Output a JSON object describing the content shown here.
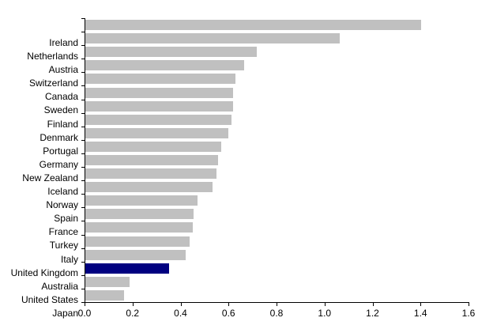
{
  "chart_data": {
    "type": "bar",
    "orientation": "horizontal",
    "categories": [
      "Ireland",
      "Netherlands",
      "Austria",
      "Switzerland",
      "Canada",
      "Sweden",
      "Finland",
      "Denmark",
      "Portugal",
      "Germany",
      "New Zealand",
      "Iceland",
      "Norway",
      "Spain",
      "France",
      "Turkey",
      "Italy",
      "United Kingdom",
      "Australia",
      "United States",
      "Japan"
    ],
    "values": [
      1.4,
      1.06,
      0.715,
      0.662,
      0.625,
      0.617,
      0.616,
      0.609,
      0.596,
      0.567,
      0.553,
      0.546,
      0.53,
      0.467,
      0.451,
      0.447,
      0.434,
      0.419,
      0.348,
      0.183,
      0.161
    ],
    "highlight_category": "Australia",
    "bar_color": "#c0c0c0",
    "highlight_color": "#000080",
    "axis_color": "#000000",
    "background_color": "#ffffff",
    "xlim": [
      0,
      1.6
    ],
    "x_tick_labels": [
      "0.0",
      "0.2",
      "0.4",
      "0.6",
      "0.8",
      "1.0",
      "1.2",
      "1.4",
      "1.6"
    ],
    "grid": "off",
    "legend": "none"
  }
}
